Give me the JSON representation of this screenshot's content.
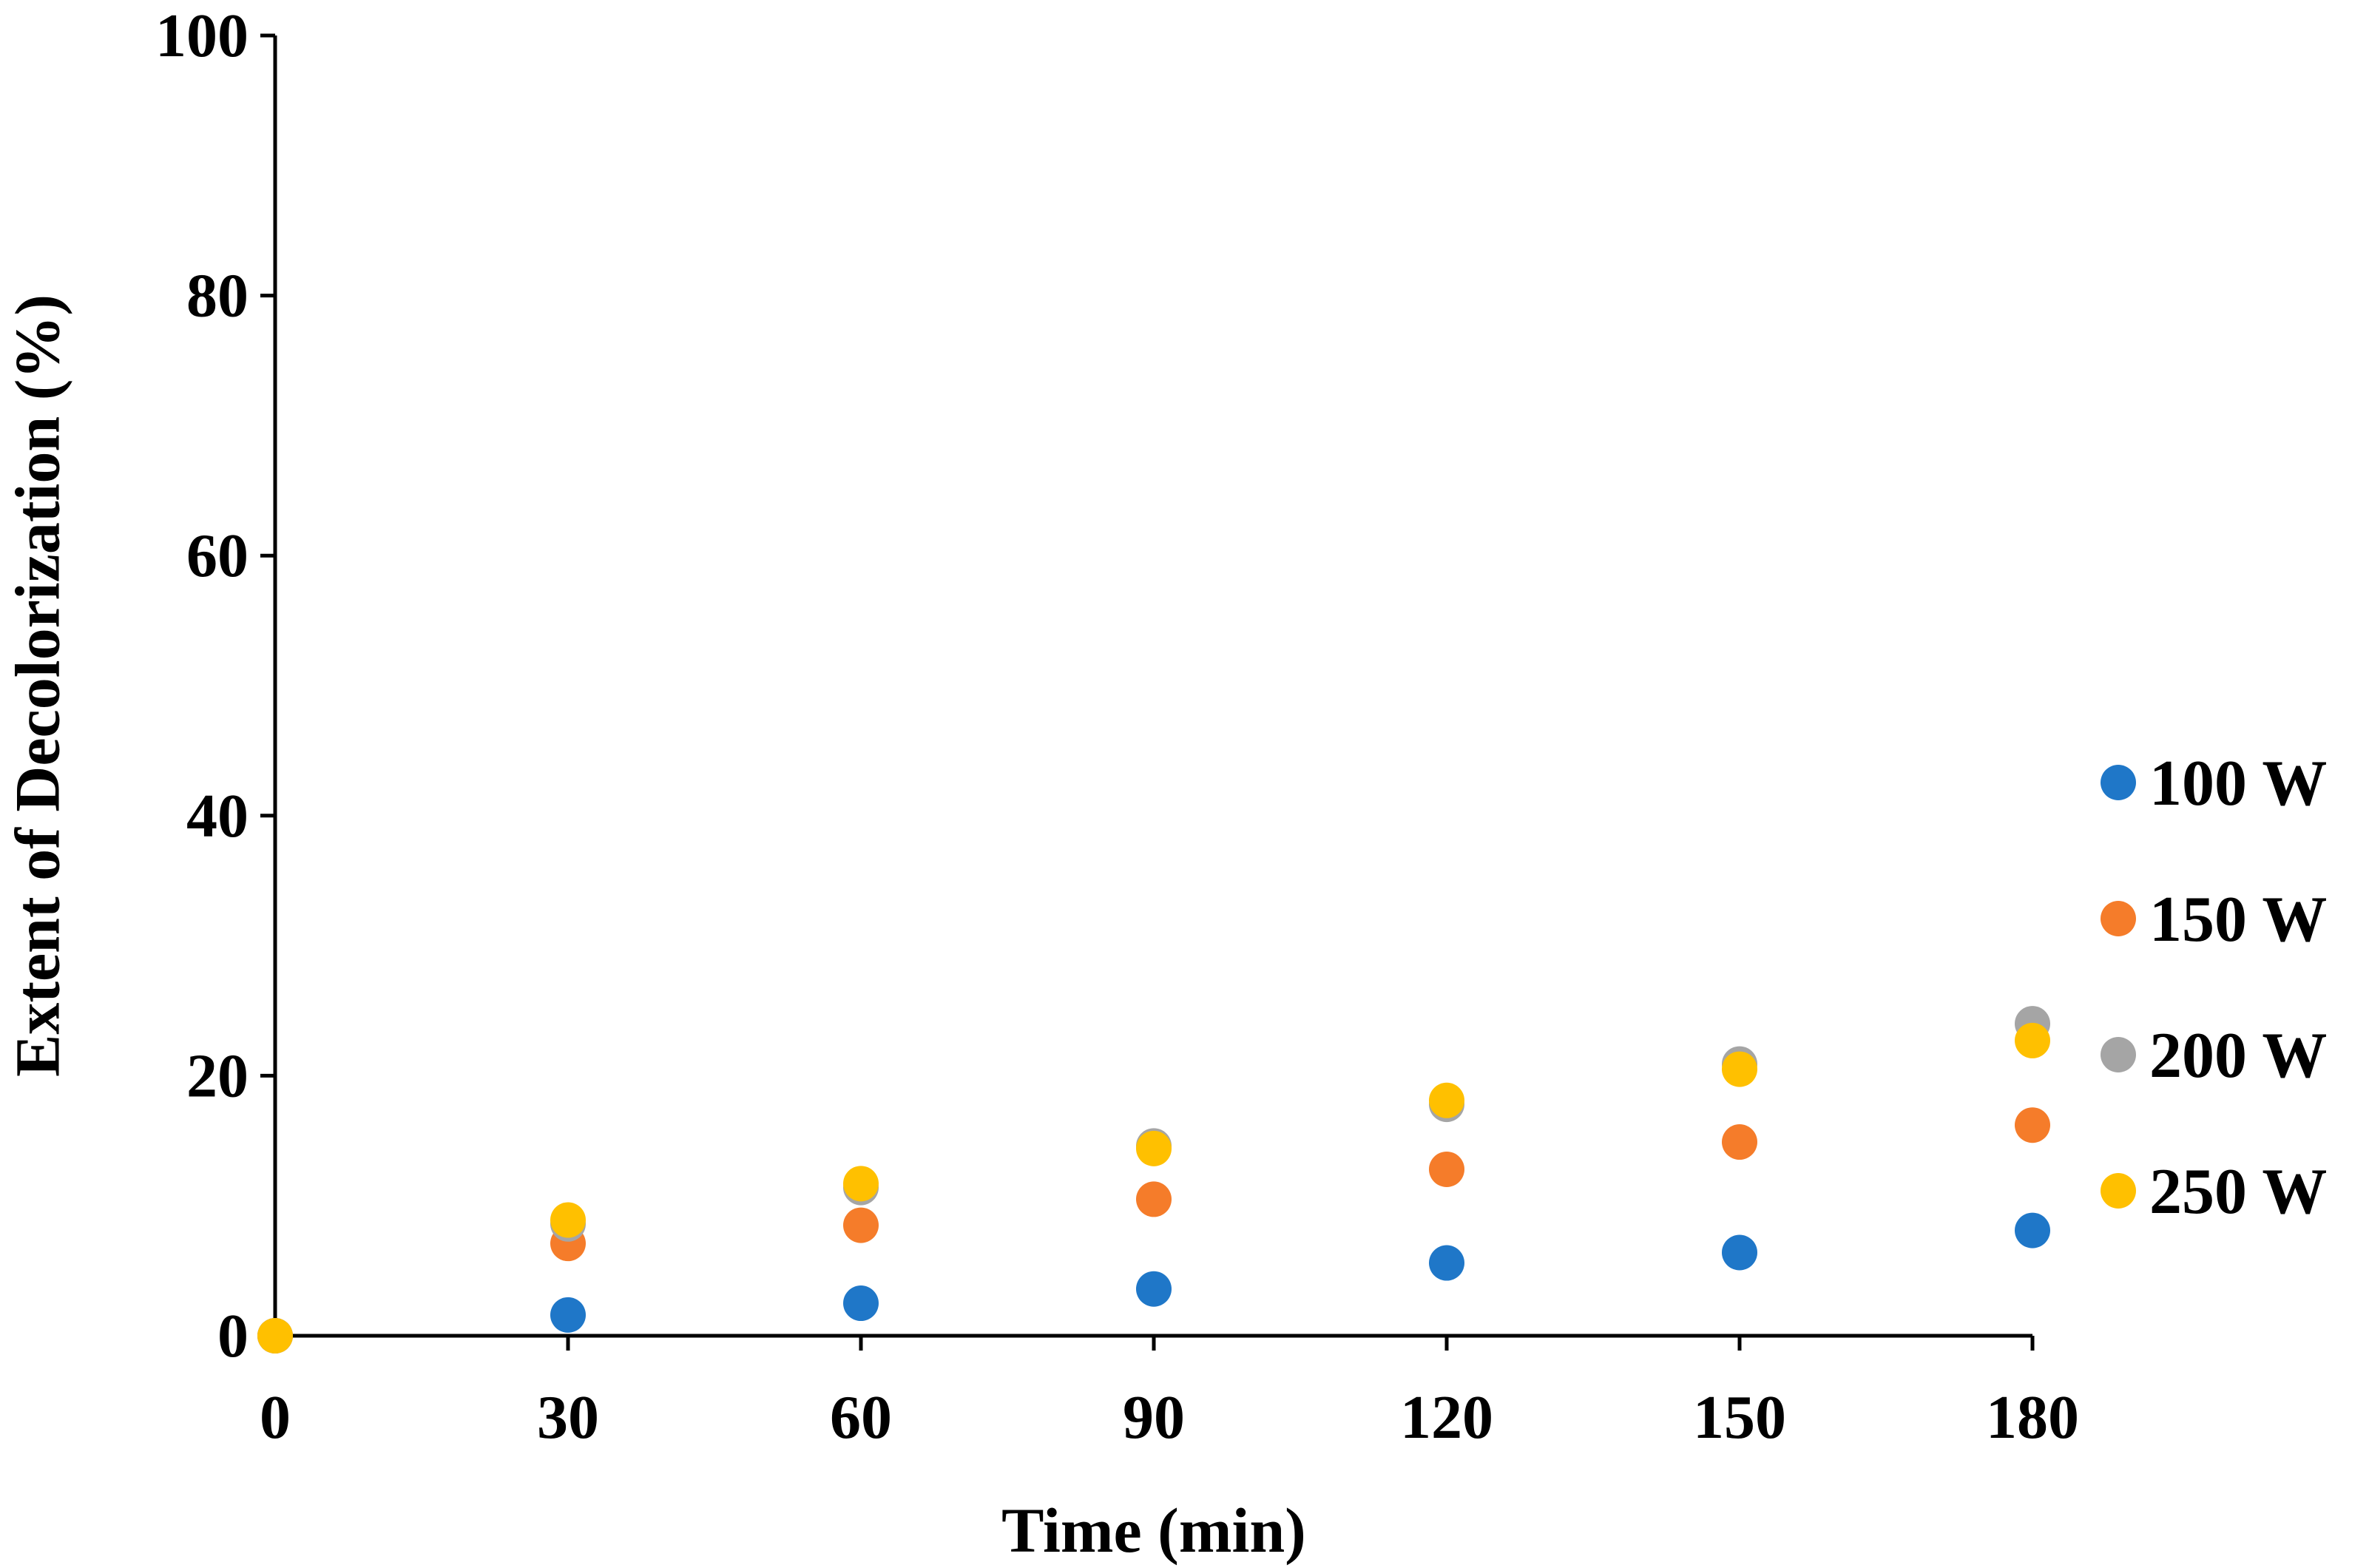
{
  "chart_data": {
    "type": "scatter",
    "title": "",
    "xlabel": "Time (min)",
    "ylabel": "Extent of Decolorization (%)",
    "xlim": [
      0,
      180
    ],
    "ylim": [
      0,
      100
    ],
    "xticks": [
      0,
      30,
      60,
      90,
      120,
      150,
      180
    ],
    "yticks": [
      0,
      20,
      40,
      60,
      80,
      100
    ],
    "x_tick_labels": [
      "0",
      "30",
      "60",
      "90",
      "120",
      "150",
      "180"
    ],
    "y_tick_labels": [
      "0",
      "20",
      "40",
      "60",
      "80",
      "100"
    ],
    "grid": false,
    "legend_position": "right",
    "x": [
      0,
      30,
      60,
      90,
      120,
      150,
      180
    ],
    "series": [
      {
        "name": "100 W",
        "color": "#1f77c8",
        "values": [
          0,
          1.6,
          2.5,
          3.6,
          5.6,
          6.4,
          8.1
        ]
      },
      {
        "name": "150 W",
        "color": "#f57c2a",
        "values": [
          0,
          7.1,
          8.5,
          10.5,
          12.8,
          14.9,
          16.2
        ]
      },
      {
        "name": "200 W",
        "color": "#a5a5a5",
        "values": [
          0,
          8.6,
          11.4,
          14.6,
          17.8,
          20.9,
          24.0
        ]
      },
      {
        "name": "250 W",
        "color": "#ffc000",
        "values": [
          0,
          8.9,
          11.7,
          14.4,
          18.1,
          20.5,
          22.7
        ]
      }
    ]
  }
}
